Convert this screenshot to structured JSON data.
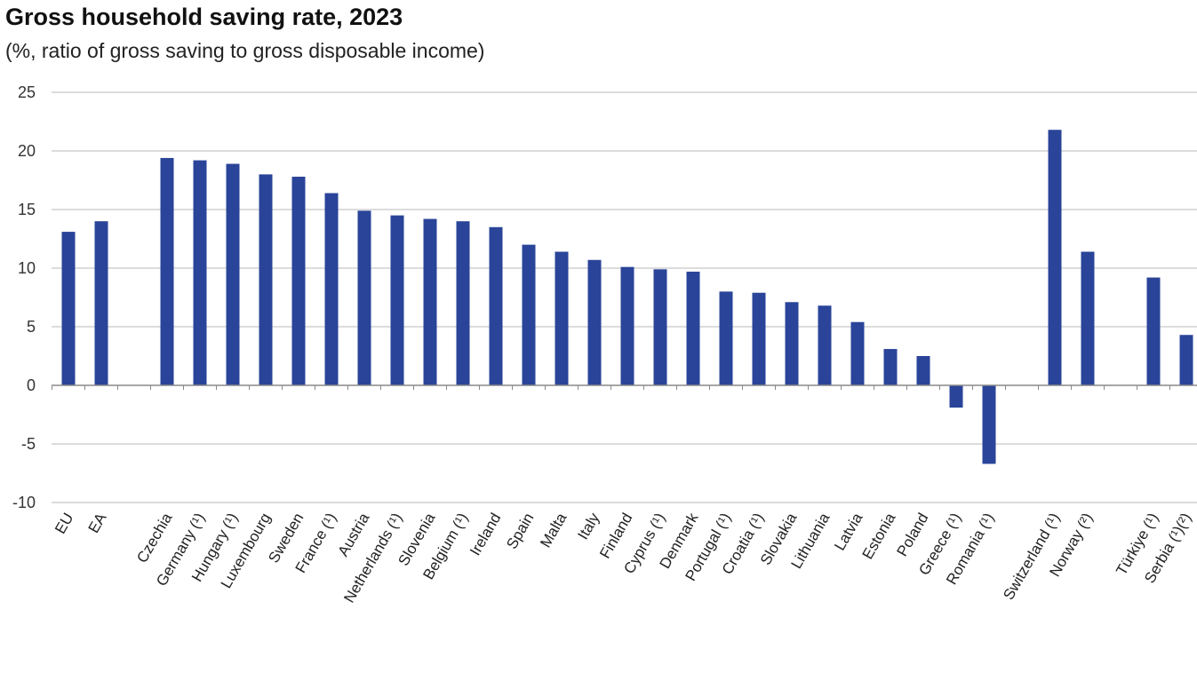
{
  "chart_data": {
    "type": "bar",
    "title": "Gross household saving rate, 2023",
    "subtitle": "(%, ratio of gross saving to gross disposable income)",
    "xlabel": "",
    "ylabel": "",
    "ylim": [
      -10,
      25
    ],
    "yticks": [
      -10,
      -5,
      0,
      5,
      10,
      15,
      20,
      25
    ],
    "grid": true,
    "bar_color": "#2a4499",
    "categories": [
      "EU",
      "EA",
      "",
      "Czechia",
      "Germany (¹)",
      "Hungary (¹)",
      "Luxembourg",
      "Sweden",
      "France (¹)",
      "Austria",
      "Netherlands (¹)",
      "Slovenia",
      "Belgium (¹)",
      "Ireland",
      "Spain",
      "Malta",
      "Italy",
      "Finland",
      "Cyprus (¹)",
      "Denmark",
      "Portugal (¹)",
      "Croatia (¹)",
      "Slovakia",
      "Lithuania",
      "Latvia",
      "Estonia",
      "Poland",
      "Greece (¹)",
      "Romania (¹)",
      "",
      "Switzerland (¹)",
      "Norway (²)",
      "",
      "Türkiye (¹)",
      "Serbia (¹)(²)"
    ],
    "values": [
      13.1,
      14.0,
      null,
      19.4,
      19.2,
      18.9,
      18.0,
      17.8,
      16.4,
      14.9,
      14.5,
      14.2,
      14.0,
      13.5,
      12.0,
      11.4,
      10.7,
      10.1,
      9.9,
      9.7,
      8.0,
      7.9,
      7.1,
      6.8,
      5.4,
      3.1,
      2.5,
      -1.9,
      -6.7,
      null,
      21.8,
      11.4,
      null,
      9.2,
      4.3
    ]
  }
}
